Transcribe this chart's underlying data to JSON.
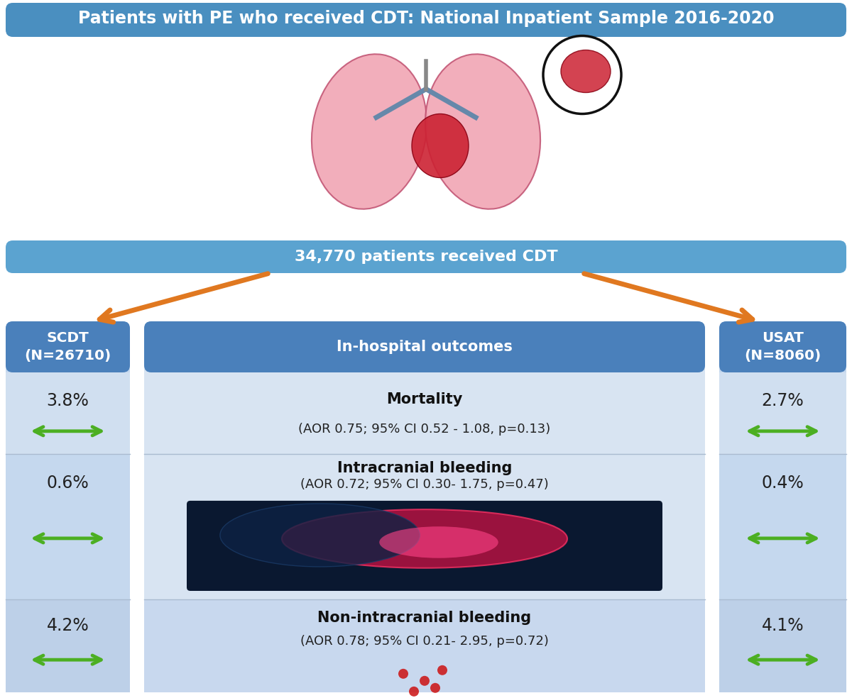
{
  "title": "Patients with PE who received CDT: National Inpatient Sample 2016-2020",
  "title_color": "#FFFFFF",
  "title_bg": "#4A8FC0",
  "subtitle": "34,770 patients received CDT",
  "subtitle_bg": "#5BA3D0",
  "left_header": "SCDT\n(N=26710)",
  "right_header": "USAT\n(N=8060)",
  "center_header": "In-hospital outcomes",
  "header_bg": "#4A80BB",
  "header_text_color": "#FFFFFF",
  "left_col_bg": "#C5D8EE",
  "right_col_bg": "#C5D8EE",
  "center_col_bg": "#D8E4F2",
  "row1_left_val": "3.8%",
  "row1_right_val": "2.7%",
  "row1_center_title": "Mortality",
  "row1_center_sub": "(AOR 0.75; 95% CI 0.52 - 1.08, p=0.13)",
  "row2_left_val": "0.6%",
  "row2_right_val": "0.4%",
  "row2_center_title": "Intracranial bleeding",
  "row2_center_sub": "(AOR 0.72; 95% CI 0.30- 1.75, p=0.47)",
  "row3_left_val": "4.2%",
  "row3_right_val": "4.1%",
  "row3_center_title": "Non-intracranial bleeding",
  "row3_center_sub": "(AOR 0.78; 95% CI 0.21- 2.95, p=0.72)",
  "orange_arrow_color": "#E07820",
  "green_arrow_color": "#4CAF22",
  "row1_left_bg": "#D0DFF0",
  "row1_right_bg": "#D0DFF0",
  "row1_center_bg": "#D8E4F2",
  "row2_left_bg": "#C5D8EE",
  "row2_right_bg": "#C5D8EE",
  "row2_center_bg": "#D8E4F2",
  "row3_left_bg": "#BDD0E8",
  "row3_right_bg": "#BDD0E8",
  "row3_center_bg": "#C8D8EE",
  "fig_bg": "#FFFFFF"
}
